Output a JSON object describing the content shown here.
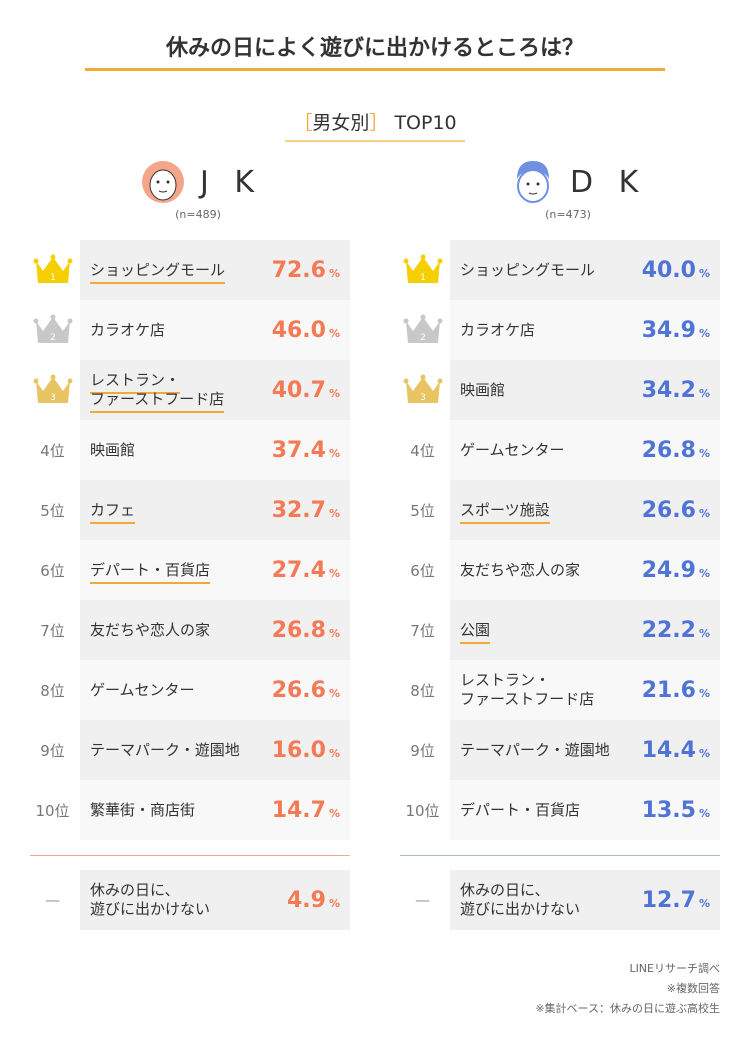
{
  "title": "休みの日によく遊びに出かけるところは？",
  "subtitle": {
    "bracket_open": "［",
    "label": "男女別",
    "bracket_close": "］",
    "top": "TOP10"
  },
  "colors": {
    "accent": "#f2a93b",
    "jk": "#f47a56",
    "dk": "#4f74d6",
    "gold": "#f5cf00",
    "silver": "#c8c8c8",
    "bronze": "#e8c463"
  },
  "chart_data": {
    "type": "table",
    "unit": "%",
    "groups": [
      {
        "label": "J K",
        "n": "(n=489)",
        "icon": "girl-face-icon",
        "rows": [
          {
            "rank": "1",
            "item": "ショッピングモール",
            "value": 72.6,
            "underline": true
          },
          {
            "rank": "2",
            "item": "カラオケ店",
            "value": 46.0,
            "underline": false
          },
          {
            "rank": "3",
            "item": "レストラン・\nファーストフード店",
            "value": 40.7,
            "underline": true
          },
          {
            "rank": "4位",
            "item": "映画館",
            "value": 37.4,
            "underline": false
          },
          {
            "rank": "5位",
            "item": "カフェ",
            "value": 32.7,
            "underline": true
          },
          {
            "rank": "6位",
            "item": "デパート・百貨店",
            "value": 27.4,
            "underline": true
          },
          {
            "rank": "7位",
            "item": "友だちや恋人の家",
            "value": 26.8,
            "underline": false
          },
          {
            "rank": "8位",
            "item": "ゲームセンター",
            "value": 26.6,
            "underline": false
          },
          {
            "rank": "9位",
            "item": "テーマパーク・遊園地",
            "value": 16.0,
            "underline": false
          },
          {
            "rank": "10位",
            "item": "繁華街・商店街",
            "value": 14.7,
            "underline": false
          }
        ],
        "none": {
          "rank": "—",
          "item": "休みの日に、\n遊びに出かけない",
          "value": 4.9
        }
      },
      {
        "label": "D K",
        "n": "(n=473)",
        "icon": "boy-face-icon",
        "rows": [
          {
            "rank": "1",
            "item": "ショッピングモール",
            "value": 40.0,
            "underline": false
          },
          {
            "rank": "2",
            "item": "カラオケ店",
            "value": 34.9,
            "underline": false
          },
          {
            "rank": "3",
            "item": "映画館",
            "value": 34.2,
            "underline": false
          },
          {
            "rank": "4位",
            "item": "ゲームセンター",
            "value": 26.8,
            "underline": false
          },
          {
            "rank": "5位",
            "item": "スポーツ施設",
            "value": 26.6,
            "underline": true
          },
          {
            "rank": "6位",
            "item": "友だちや恋人の家",
            "value": 24.9,
            "underline": false
          },
          {
            "rank": "7位",
            "item": "公園",
            "value": 22.2,
            "underline": true
          },
          {
            "rank": "8位",
            "item": "レストラン・\nファーストフード店",
            "value": 21.6,
            "underline": false
          },
          {
            "rank": "9位",
            "item": "テーマパーク・遊園地",
            "value": 14.4,
            "underline": false
          },
          {
            "rank": "10位",
            "item": "デパート・百貨店",
            "value": 13.5,
            "underline": false
          }
        ],
        "none": {
          "rank": "—",
          "item": "休みの日に、\n遊びに出かけない",
          "value": 12.7
        }
      }
    ]
  },
  "footer": [
    "LINEリサーチ調べ",
    "※複数回答",
    "※集計ベース：休みの日に遊ぶ高校生"
  ]
}
